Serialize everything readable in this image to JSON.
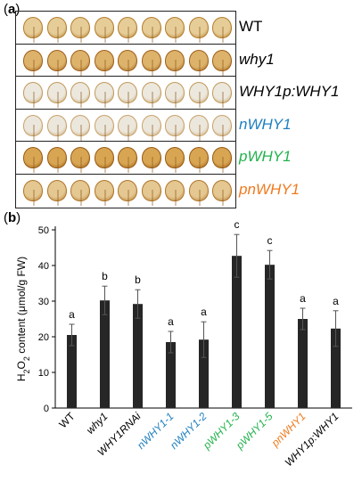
{
  "panel_a": {
    "label_letter": "a",
    "rows": [
      {
        "label": "WT",
        "italic": false,
        "color": "#000000",
        "leaf_fill": "#e6cd98",
        "stain": "#b47d2b"
      },
      {
        "label": "why1",
        "italic": true,
        "color": "#000000",
        "leaf_fill": "#ddb36b",
        "stain": "#a06018"
      },
      {
        "label": "WHY1p:WHY1",
        "italic": true,
        "color": "#000000",
        "leaf_fill": "#ece8de",
        "stain": "#c29a5a"
      },
      {
        "label": "nWHY1",
        "italic": true,
        "color": "#1f7fc0",
        "leaf_fill": "#ece7dc",
        "stain": "#c8a26a"
      },
      {
        "label": "pWHY1",
        "italic": true,
        "color": "#22b24c",
        "leaf_fill": "#d8a653",
        "stain": "#9a5a12"
      },
      {
        "label": "pnWHY1",
        "italic": true,
        "color": "#f07a1e",
        "leaf_fill": "#e4c791",
        "stain": "#b1762a"
      }
    ]
  },
  "panel_b": {
    "label_letter": "b",
    "ylabel_prefix": "H",
    "ylabel_sub1": "2",
    "ylabel_mid": "O",
    "ylabel_sub2": "2",
    "ylabel_suffix": " content (μmol/g FW)",
    "bar_color": "#262626",
    "category_colors": [
      "#000000",
      "#000000",
      "#000000",
      "#1f7fc0",
      "#1f7fc0",
      "#22b24c",
      "#22b24c",
      "#f07a1e",
      "#000000"
    ],
    "category_italic": [
      false,
      true,
      true,
      true,
      true,
      true,
      true,
      true,
      true
    ]
  },
  "chart_data": {
    "type": "bar",
    "categories": [
      "WT",
      "why1",
      "WHY1RNAi",
      "nWHY1-1",
      "nWHY1-2",
      "pWHY1-3",
      "pWHY1-5",
      "pnWHY1",
      "WHY1p:WHY1"
    ],
    "values": [
      20.5,
      30.2,
      29.2,
      18.5,
      19.2,
      42.7,
      40.2,
      25.0,
      22.3
    ],
    "errors": [
      3.0,
      4.0,
      4.0,
      3.0,
      5.0,
      6.0,
      4.0,
      3.0,
      5.0
    ],
    "significance": [
      "a",
      "b",
      "b",
      "a",
      "a",
      "c",
      "c",
      "a",
      "a"
    ],
    "ylim": [
      0,
      50
    ],
    "yticks": [
      0,
      10,
      20,
      30,
      40,
      50
    ],
    "xlabel": "",
    "ylabel": "H2O2 content (μmol/g FW)"
  }
}
